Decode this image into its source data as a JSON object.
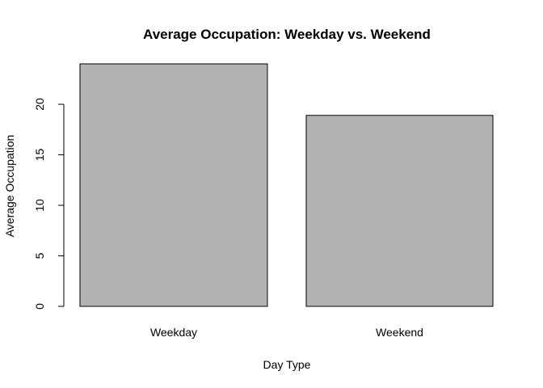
{
  "chart_data": {
    "type": "bar",
    "title": "Average Occupation: Weekday vs. Weekend",
    "xlabel": "Day Type",
    "ylabel": "Average Occupation",
    "categories": [
      "Weekday",
      "Weekend"
    ],
    "values": [
      24.0,
      18.9
    ],
    "ylim": [
      0,
      24
    ],
    "yticks": [
      0,
      5,
      10,
      15,
      20
    ],
    "ytick_labels": [
      "0",
      "5",
      "10",
      "15",
      "20"
    ],
    "grid": false,
    "legend": "none",
    "colors": {
      "bar_fill": "#b2b2b2",
      "bar_stroke": "#000000",
      "axis": "#000000",
      "background": "#ffffff"
    }
  }
}
